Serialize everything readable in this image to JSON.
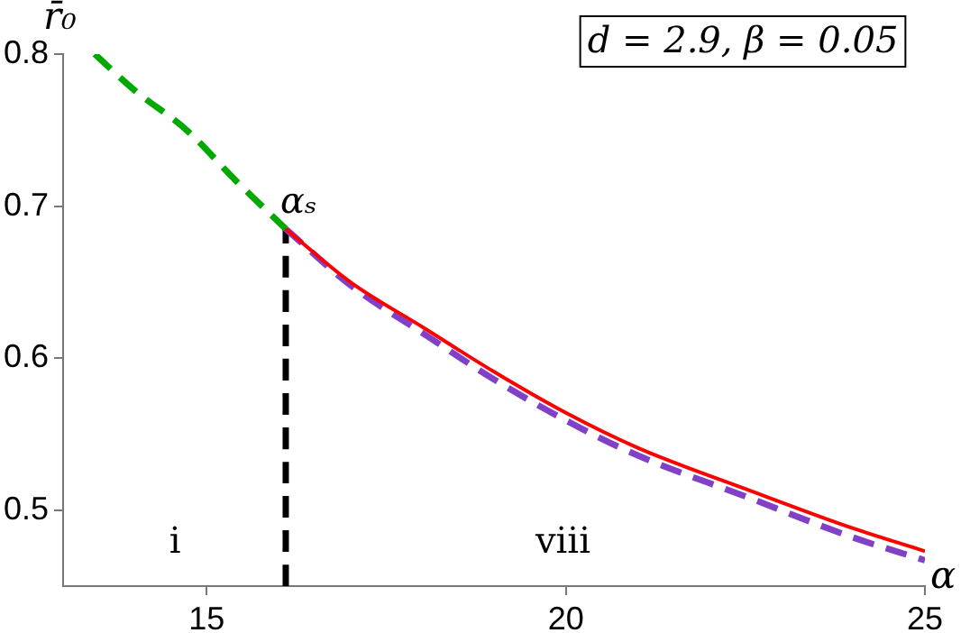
{
  "chart_data": {
    "type": "line",
    "title": "d = 2.9, β = 0.05",
    "xlabel": "α",
    "ylabel": "r̄₀",
    "series": [
      {
        "color": "#00a800",
        "line_style": "dashed",
        "x": [
          13.44,
          14.0,
          14.72,
          15.4,
          16.1
        ],
        "values": [
          0.8,
          0.776,
          0.75,
          0.717,
          0.685
        ]
      },
      {
        "color": "#ff0000",
        "line_style": "solid",
        "x": [
          16.1,
          17.0,
          18.02,
          19.0,
          20.0,
          21.0,
          22.5,
          24.0,
          25.0
        ],
        "values": [
          0.685,
          0.65,
          0.62,
          0.591,
          0.564,
          0.541,
          0.514,
          0.488,
          0.473
        ]
      },
      {
        "color": "#8040c8",
        "line_style": "dashed",
        "x": [
          16.1,
          17.0,
          18.02,
          19.0,
          20.0,
          21.0,
          22.5,
          24.0,
          25.0
        ],
        "values": [
          0.685,
          0.648,
          0.616,
          0.586,
          0.559,
          0.536,
          0.509,
          0.482,
          0.467
        ]
      },
      {
        "color": "#000000",
        "line_style": "dashed",
        "x": [
          16.1,
          16.1
        ],
        "values": [
          0.45,
          0.685
        ]
      }
    ],
    "annotations": [
      {
        "text": "αₛ",
        "x": 16.1,
        "y": 0.685
      },
      "i",
      "viii"
    ],
    "xlim": [
      13,
      25
    ],
    "xticks": [
      15,
      20,
      25
    ],
    "ylim": [
      0.45,
      0.8
    ],
    "yticks": [
      0.5,
      0.6,
      0.7,
      0.8
    ],
    "grid": false,
    "marker": "none"
  }
}
